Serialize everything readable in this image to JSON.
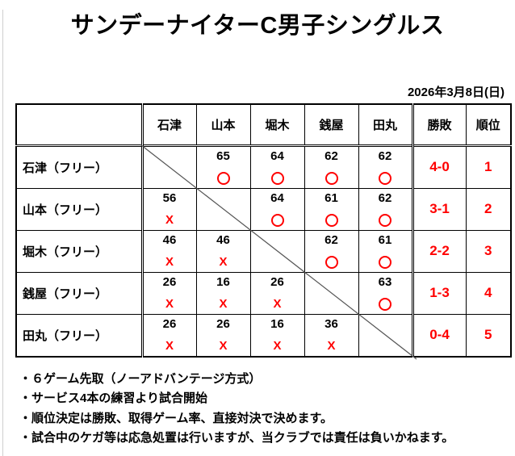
{
  "title": "サンデーナイターC男子シングルス",
  "date": "2026年3月8日(日)",
  "table": {
    "corner_label": "",
    "opponents": [
      "石津",
      "山本",
      "堀木",
      "銭屋",
      "田丸"
    ],
    "summary_headers": [
      "勝敗",
      "順位"
    ],
    "rows": [
      {
        "name": "石津（フリー）",
        "cells": [
          null,
          {
            "score": "65",
            "mark": "O"
          },
          {
            "score": "64",
            "mark": "O"
          },
          {
            "score": "62",
            "mark": "O"
          },
          {
            "score": "62",
            "mark": "O"
          }
        ],
        "record": "4-0",
        "rank": "1"
      },
      {
        "name": "山本（フリー）",
        "cells": [
          {
            "score": "56",
            "mark": "X"
          },
          null,
          {
            "score": "64",
            "mark": "O"
          },
          {
            "score": "61",
            "mark": "O"
          },
          {
            "score": "62",
            "mark": "O"
          }
        ],
        "record": "3-1",
        "rank": "2"
      },
      {
        "name": "堀木（フリー）",
        "cells": [
          {
            "score": "46",
            "mark": "X"
          },
          {
            "score": "46",
            "mark": "X"
          },
          null,
          {
            "score": "62",
            "mark": "O"
          },
          {
            "score": "61",
            "mark": "O"
          }
        ],
        "record": "2-2",
        "rank": "3"
      },
      {
        "name": "銭屋（フリー）",
        "cells": [
          {
            "score": "26",
            "mark": "X"
          },
          {
            "score": "16",
            "mark": "X"
          },
          {
            "score": "26",
            "mark": "X"
          },
          null,
          {
            "score": "63",
            "mark": "O"
          }
        ],
        "record": "1-3",
        "rank": "4"
      },
      {
        "name": "田丸（フリー）",
        "cells": [
          {
            "score": "26",
            "mark": "X"
          },
          {
            "score": "26",
            "mark": "X"
          },
          {
            "score": "16",
            "mark": "X"
          },
          {
            "score": "36",
            "mark": "X"
          },
          null
        ],
        "record": "0-4",
        "rank": "5"
      }
    ]
  },
  "notes": [
    "・６ゲーム先取（ノーアドバンテージ方式）",
    "・サービス4本の練習より試合開始",
    "・順位決定は勝敗、取得ゲーム率、直接対決で決めます。",
    "・試合中のケガ等は応急処置は行いますが、当クラブでは責任は負いかねます。"
  ],
  "colors": {
    "accent_red": "#ff0000",
    "border_black": "#000000",
    "edge_gray": "#cfcfcf"
  }
}
